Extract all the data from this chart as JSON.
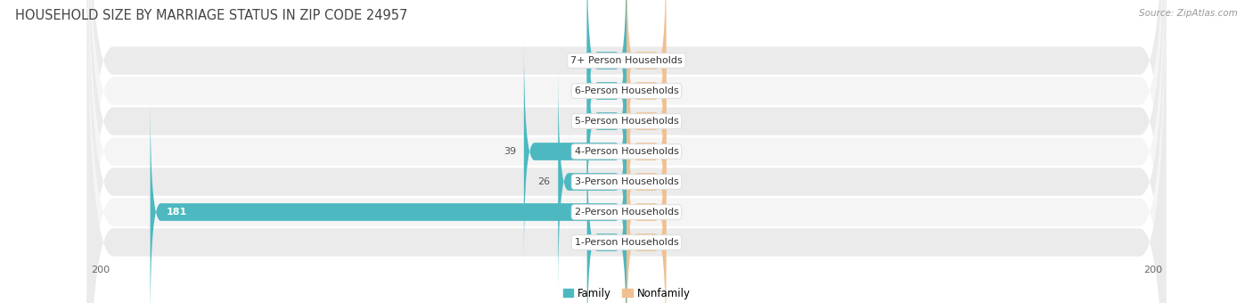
{
  "title": "HOUSEHOLD SIZE BY MARRIAGE STATUS IN ZIP CODE 24957",
  "source": "Source: ZipAtlas.com",
  "categories": [
    "7+ Person Households",
    "6-Person Households",
    "5-Person Households",
    "4-Person Households",
    "3-Person Households",
    "2-Person Households",
    "1-Person Households"
  ],
  "family_values": [
    0,
    0,
    0,
    39,
    26,
    181,
    0
  ],
  "nonfamily_values": [
    0,
    0,
    0,
    0,
    0,
    0,
    0
  ],
  "family_color": "#4DB8C0",
  "nonfamily_color": "#F0C090",
  "xlim": 200,
  "min_bar": 15,
  "bar_height": 0.58,
  "row_bg_color": "#ebebeb",
  "row_bg_light": "#f5f5f5",
  "title_fontsize": 10.5,
  "label_fontsize": 8,
  "source_fontsize": 7.5,
  "tick_fontsize": 8,
  "legend_fontsize": 8.5
}
